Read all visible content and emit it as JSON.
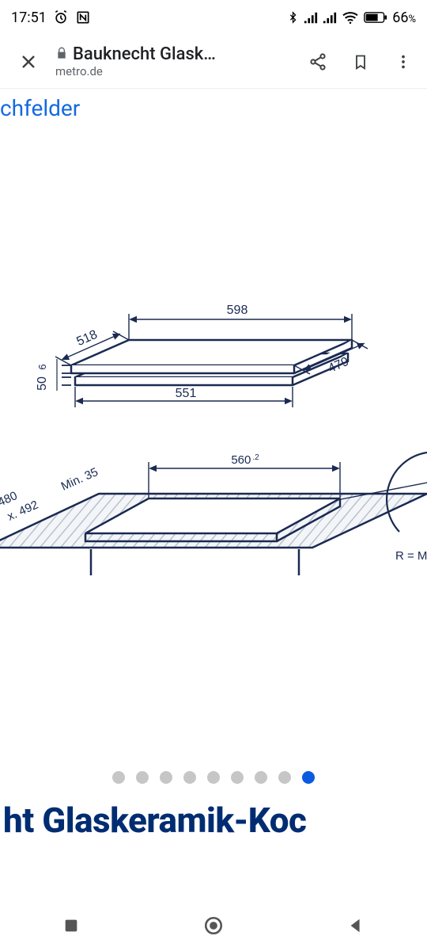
{
  "status": {
    "time": "17:51",
    "battery_pct": "66",
    "battery_suffix": "%"
  },
  "browser": {
    "title": "Bauknecht Glask…",
    "domain": "metro.de"
  },
  "breadcrumb": {
    "label": "chfelder"
  },
  "diagram": {
    "type": "technical-drawing",
    "line_color": "#1a2a52",
    "fill_color": "#ffffff",
    "hatch_color": "#d0d6dd",
    "font_size": 16,
    "top_view": {
      "width_top": "598",
      "width_bottom": "551",
      "depth_top": "518",
      "depth_bottom": "479",
      "height_front_1": "50",
      "height_front_2": "6"
    },
    "cutout": {
      "width": "560",
      "width_tol": ".2",
      "depth_min": "480",
      "depth_max": "x. 492",
      "clearance": "Min. 35",
      "radius_label": "R = M"
    }
  },
  "carousel": {
    "count": 9,
    "active_index": 8,
    "dot_color": "#c6c6c6",
    "active_color": "#0a5be0"
  },
  "product": {
    "title_fragment": "ht Glaskeramik-Koc"
  },
  "colors": {
    "link": "#1569e0",
    "title": "#002d72"
  }
}
